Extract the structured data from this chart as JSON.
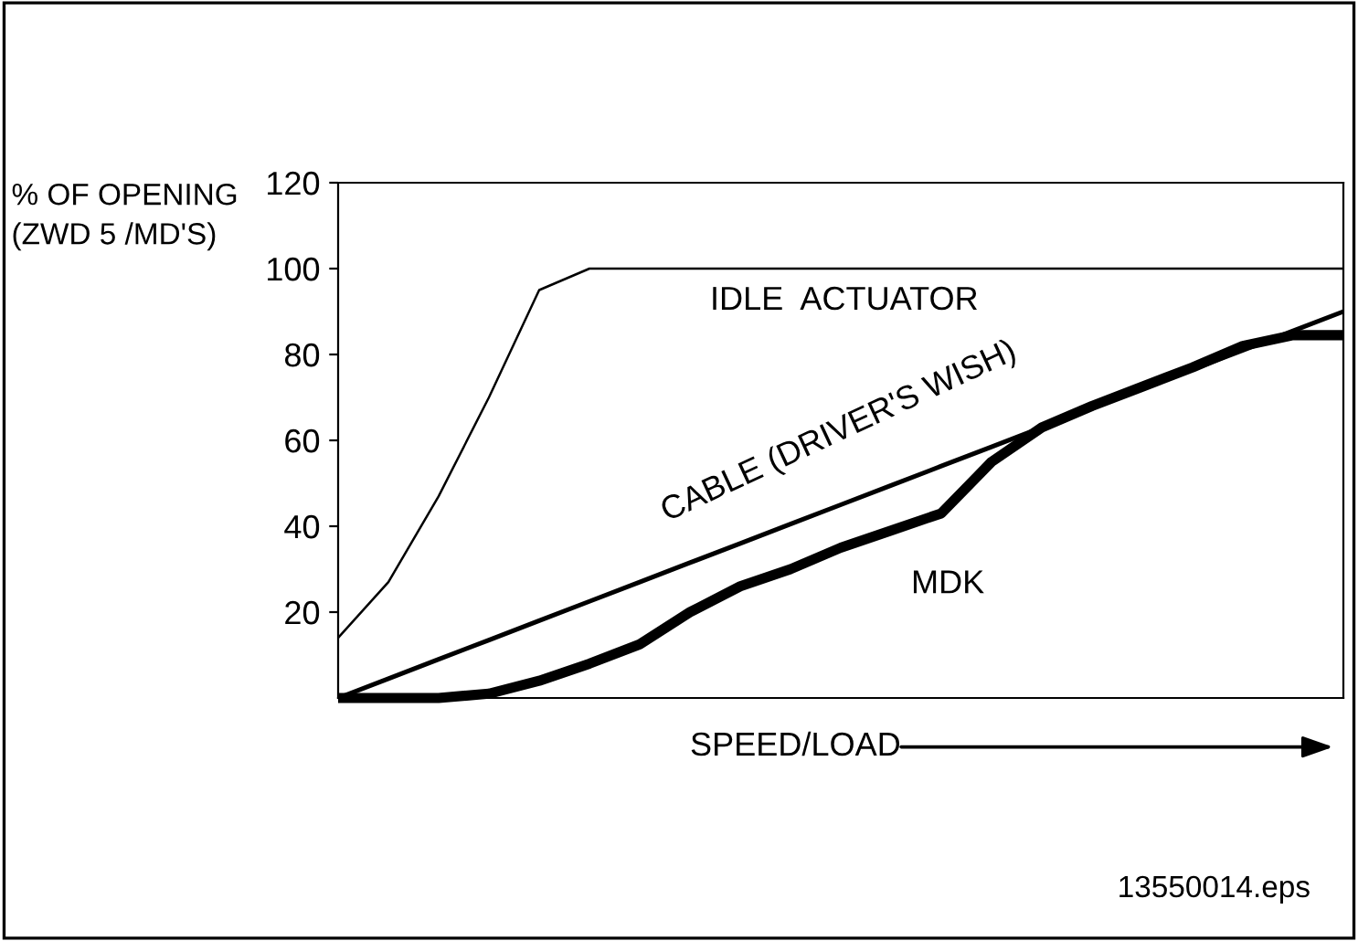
{
  "chart_data": {
    "type": "line",
    "ylabel": "% OF OPENING\n(ZWD 5 /MD'S)",
    "xlabel": "SPEED/LOAD",
    "annotations": [
      "13550014.eps"
    ],
    "categories": [
      null,
      null,
      null,
      null,
      null,
      null,
      null,
      null,
      null,
      null,
      null,
      null,
      null,
      null,
      null,
      null,
      null,
      null,
      null,
      null,
      null
    ],
    "ylim": [
      0,
      120
    ],
    "yticks": [
      20,
      40,
      60,
      80,
      100,
      120
    ],
    "grid": false,
    "legend": false,
    "marker": "none",
    "line_style": "solid",
    "series": [
      {
        "name": "IDLE  ACTUATOR",
        "color": "#000000",
        "values": [
          14,
          27,
          47,
          70,
          95,
          100,
          100,
          100,
          100,
          100,
          100,
          100,
          100,
          100,
          100,
          100,
          100,
          100,
          100,
          100,
          100
        ]
      },
      {
        "name": "CABLE (DRIVER'S WISH)",
        "color": "#000000",
        "values": [
          0,
          4.5,
          9,
          13.5,
          18,
          22.5,
          27,
          31.5,
          36,
          40.5,
          45,
          49.5,
          54,
          58.5,
          63,
          67.5,
          72,
          76.5,
          81,
          85.5,
          90
        ]
      },
      {
        "name": "MDK",
        "color": "#000000",
        "values": [
          0,
          0,
          0,
          1,
          4,
          8,
          12.5,
          20,
          26,
          30,
          35,
          39,
          43,
          55,
          63,
          68,
          72.5,
          77,
          82,
          84.5,
          84.5
        ]
      }
    ]
  }
}
